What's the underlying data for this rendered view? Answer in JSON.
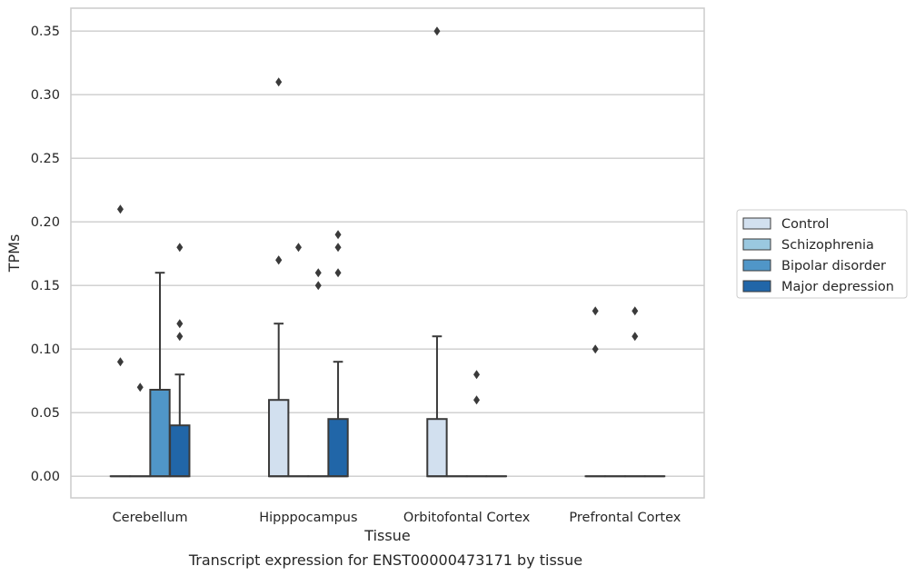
{
  "chart_data": {
    "type": "box",
    "title": "",
    "caption": "Transcript expression for ENST00000473171 by tissue",
    "xlabel": "Tissue",
    "ylabel": "TPMs",
    "ylim": [
      -0.017,
      0.368
    ],
    "yticks": [
      "0.00",
      "0.05",
      "0.10",
      "0.15",
      "0.20",
      "0.25",
      "0.30",
      "0.35"
    ],
    "categories": [
      "Cerebellum",
      "Hipppocampus",
      "Orbitofontal Cortex",
      "Prefrontal Cortex"
    ],
    "grid": "horizontal",
    "legend_position": "right",
    "series": [
      {
        "name": "Control",
        "color": "#d2e0ef",
        "boxes": [
          {
            "q1": 0,
            "median": 0,
            "q3": 0,
            "whisker_low": 0,
            "whisker_high": 0,
            "outliers": [
              0.09,
              0.21
            ]
          },
          {
            "q1": 0,
            "median": 0,
            "q3": 0.06,
            "whisker_low": 0,
            "whisker_high": 0.12,
            "outliers": [
              0.17,
              0.17,
              0.31
            ]
          },
          {
            "q1": 0,
            "median": 0,
            "q3": 0.045,
            "whisker_low": 0,
            "whisker_high": 0.11,
            "outliers": [
              0.35
            ]
          },
          {
            "q1": 0,
            "median": 0,
            "q3": 0,
            "whisker_low": 0,
            "whisker_high": 0,
            "outliers": [
              0.1,
              0.13
            ]
          }
        ]
      },
      {
        "name": "Schizophrenia",
        "color": "#9ac8e0",
        "boxes": [
          {
            "q1": 0,
            "median": 0,
            "q3": 0,
            "whisker_low": 0,
            "whisker_high": 0,
            "outliers": [
              0.07
            ]
          },
          {
            "q1": 0,
            "median": 0,
            "q3": 0,
            "whisker_low": 0,
            "whisker_high": 0,
            "outliers": [
              0.18
            ]
          },
          {
            "q1": 0,
            "median": 0,
            "q3": 0,
            "whisker_low": 0,
            "whisker_high": 0,
            "outliers": []
          },
          {
            "q1": 0,
            "median": 0,
            "q3": 0,
            "whisker_low": 0,
            "whisker_high": 0,
            "outliers": []
          }
        ]
      },
      {
        "name": "Bipolar disorder",
        "color": "#5096c8",
        "boxes": [
          {
            "q1": 0,
            "median": 0,
            "q3": 0.068,
            "whisker_low": 0,
            "whisker_high": 0.16,
            "outliers": []
          },
          {
            "q1": 0,
            "median": 0,
            "q3": 0,
            "whisker_low": 0,
            "whisker_high": 0,
            "outliers": [
              0.15,
              0.16
            ]
          },
          {
            "q1": 0,
            "median": 0,
            "q3": 0,
            "whisker_low": 0,
            "whisker_high": 0,
            "outliers": [
              0.06,
              0.08
            ]
          },
          {
            "q1": 0,
            "median": 0,
            "q3": 0,
            "whisker_low": 0,
            "whisker_high": 0,
            "outliers": [
              0.11,
              0.13
            ]
          }
        ]
      },
      {
        "name": "Major depression",
        "color": "#2166a8",
        "boxes": [
          {
            "q1": 0,
            "median": 0,
            "q3": 0.04,
            "whisker_low": 0,
            "whisker_high": 0.08,
            "outliers": [
              0.11,
              0.12,
              0.18
            ]
          },
          {
            "q1": 0,
            "median": 0,
            "q3": 0.045,
            "whisker_low": 0,
            "whisker_high": 0.09,
            "outliers": [
              0.16,
              0.18,
              0.19
            ]
          },
          {
            "q1": 0,
            "median": 0,
            "q3": 0,
            "whisker_low": 0,
            "whisker_high": 0,
            "outliers": []
          },
          {
            "q1": 0,
            "median": 0,
            "q3": 0,
            "whisker_low": 0,
            "whisker_high": 0,
            "outliers": []
          }
        ]
      }
    ]
  }
}
